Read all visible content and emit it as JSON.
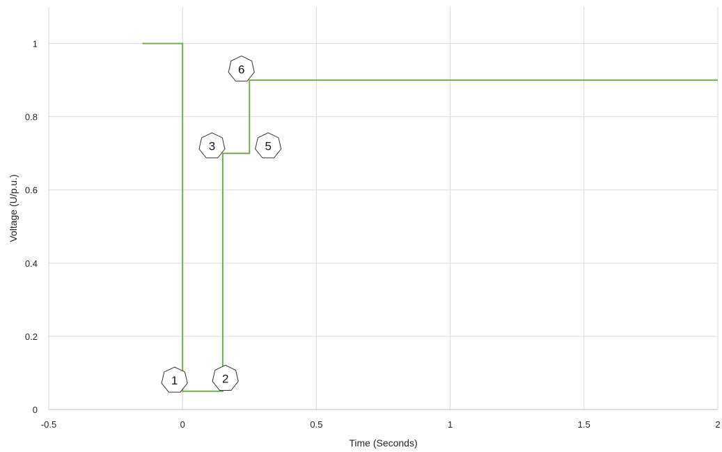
{
  "chart_data": {
    "type": "line",
    "xlabel": "Time (Seconds)",
    "ylabel": "Voltage (U/p.u.)",
    "xlim": [
      -0.5,
      2
    ],
    "ylim": [
      0,
      1.1
    ],
    "x_ticks": [
      -0.5,
      0,
      0.5,
      1,
      1.5,
      2
    ],
    "x_tick_labels": [
      "-0.5",
      "0",
      "0.5",
      "1",
      "1.5",
      "2"
    ],
    "y_ticks": [
      0,
      0.2,
      0.4,
      0.6,
      0.8,
      1
    ],
    "y_tick_labels": [
      "0",
      "0.2",
      "0.4",
      "0.6",
      "0.8",
      "1"
    ],
    "grid": true,
    "series": [
      {
        "color": "#70ad47",
        "x": [
          -0.15,
          0,
          0,
          0.15,
          0.15,
          0.25,
          0.25,
          2
        ],
        "y": [
          1,
          1,
          0.05,
          0.05,
          0.7,
          0.7,
          0.9,
          0.9
        ]
      }
    ],
    "annotations": [
      {
        "label": "1",
        "x": -0.03,
        "y": 0.08
      },
      {
        "label": "2",
        "x": 0.16,
        "y": 0.085
      },
      {
        "label": "3",
        "x": 0.11,
        "y": 0.72
      },
      {
        "label": "5",
        "x": 0.32,
        "y": 0.72
      },
      {
        "label": "6",
        "x": 0.22,
        "y": 0.93
      }
    ]
  }
}
